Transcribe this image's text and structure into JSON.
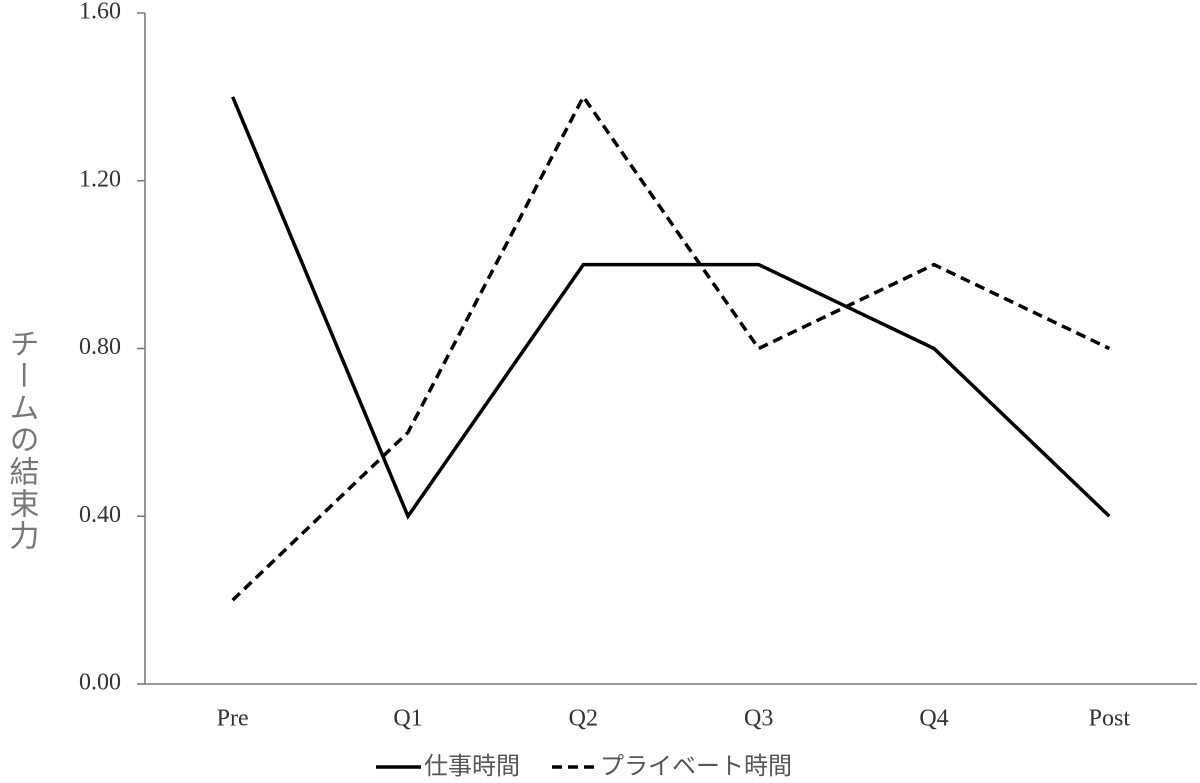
{
  "chart_data": {
    "type": "line",
    "y_label": "チームの結束力",
    "categories": [
      "Pre",
      "Q1",
      "Q2",
      "Q3",
      "Q4",
      "Post"
    ],
    "series": [
      {
        "name": "仕事時間",
        "color": "#000000",
        "dash": "solid",
        "values": [
          1.4,
          0.4,
          1.0,
          1.0,
          0.8,
          0.4
        ]
      },
      {
        "name": "プライベート時間",
        "color": "#000000",
        "dash": "dashed",
        "values": [
          0.2,
          0.6,
          1.4,
          0.8,
          1.0,
          0.8
        ]
      }
    ],
    "ylim": [
      0,
      1.6
    ],
    "yticks": [
      {
        "value": 0,
        "label": "0.00"
      },
      {
        "value": 0.4,
        "label": "0.40"
      },
      {
        "value": 0.8,
        "label": "0.80"
      },
      {
        "value": 1.2,
        "label": "1.20"
      },
      {
        "value": 1.6,
        "label": "1.60"
      }
    ],
    "grid": false,
    "legend": "bottom"
  }
}
